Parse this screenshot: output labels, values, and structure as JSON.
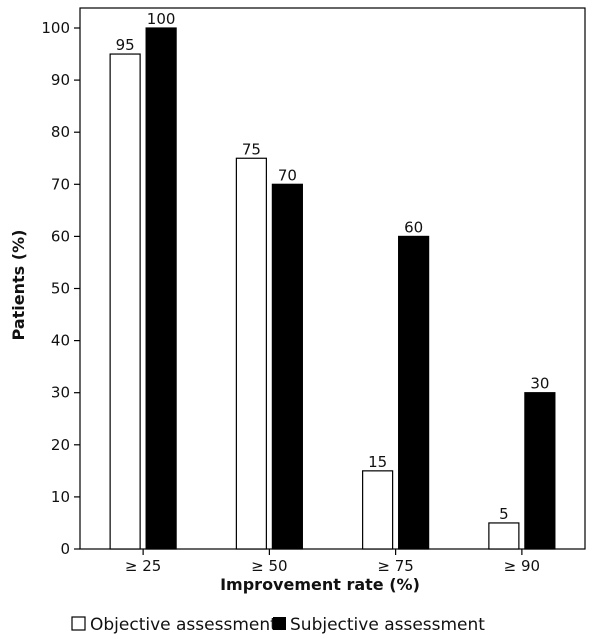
{
  "chart_data": {
    "type": "bar",
    "categories": [
      "≥ 25",
      "≥ 50",
      "≥ 75",
      "≥ 90"
    ],
    "series": [
      {
        "name": "Objective assessment",
        "values": [
          95,
          75,
          15,
          5
        ],
        "color": "#ffffff"
      },
      {
        "name": "Subjective assessment",
        "values": [
          100,
          70,
          60,
          30
        ],
        "color": "#000000"
      }
    ],
    "title": "",
    "xlabel": "Improvement rate (%)",
    "ylabel": "Patients (%)",
    "ylim": [
      0,
      100
    ],
    "yticks": [
      0,
      10,
      20,
      30,
      40,
      50,
      60,
      70,
      80,
      90,
      100
    ],
    "grid": false,
    "legend_position": "bottom"
  }
}
